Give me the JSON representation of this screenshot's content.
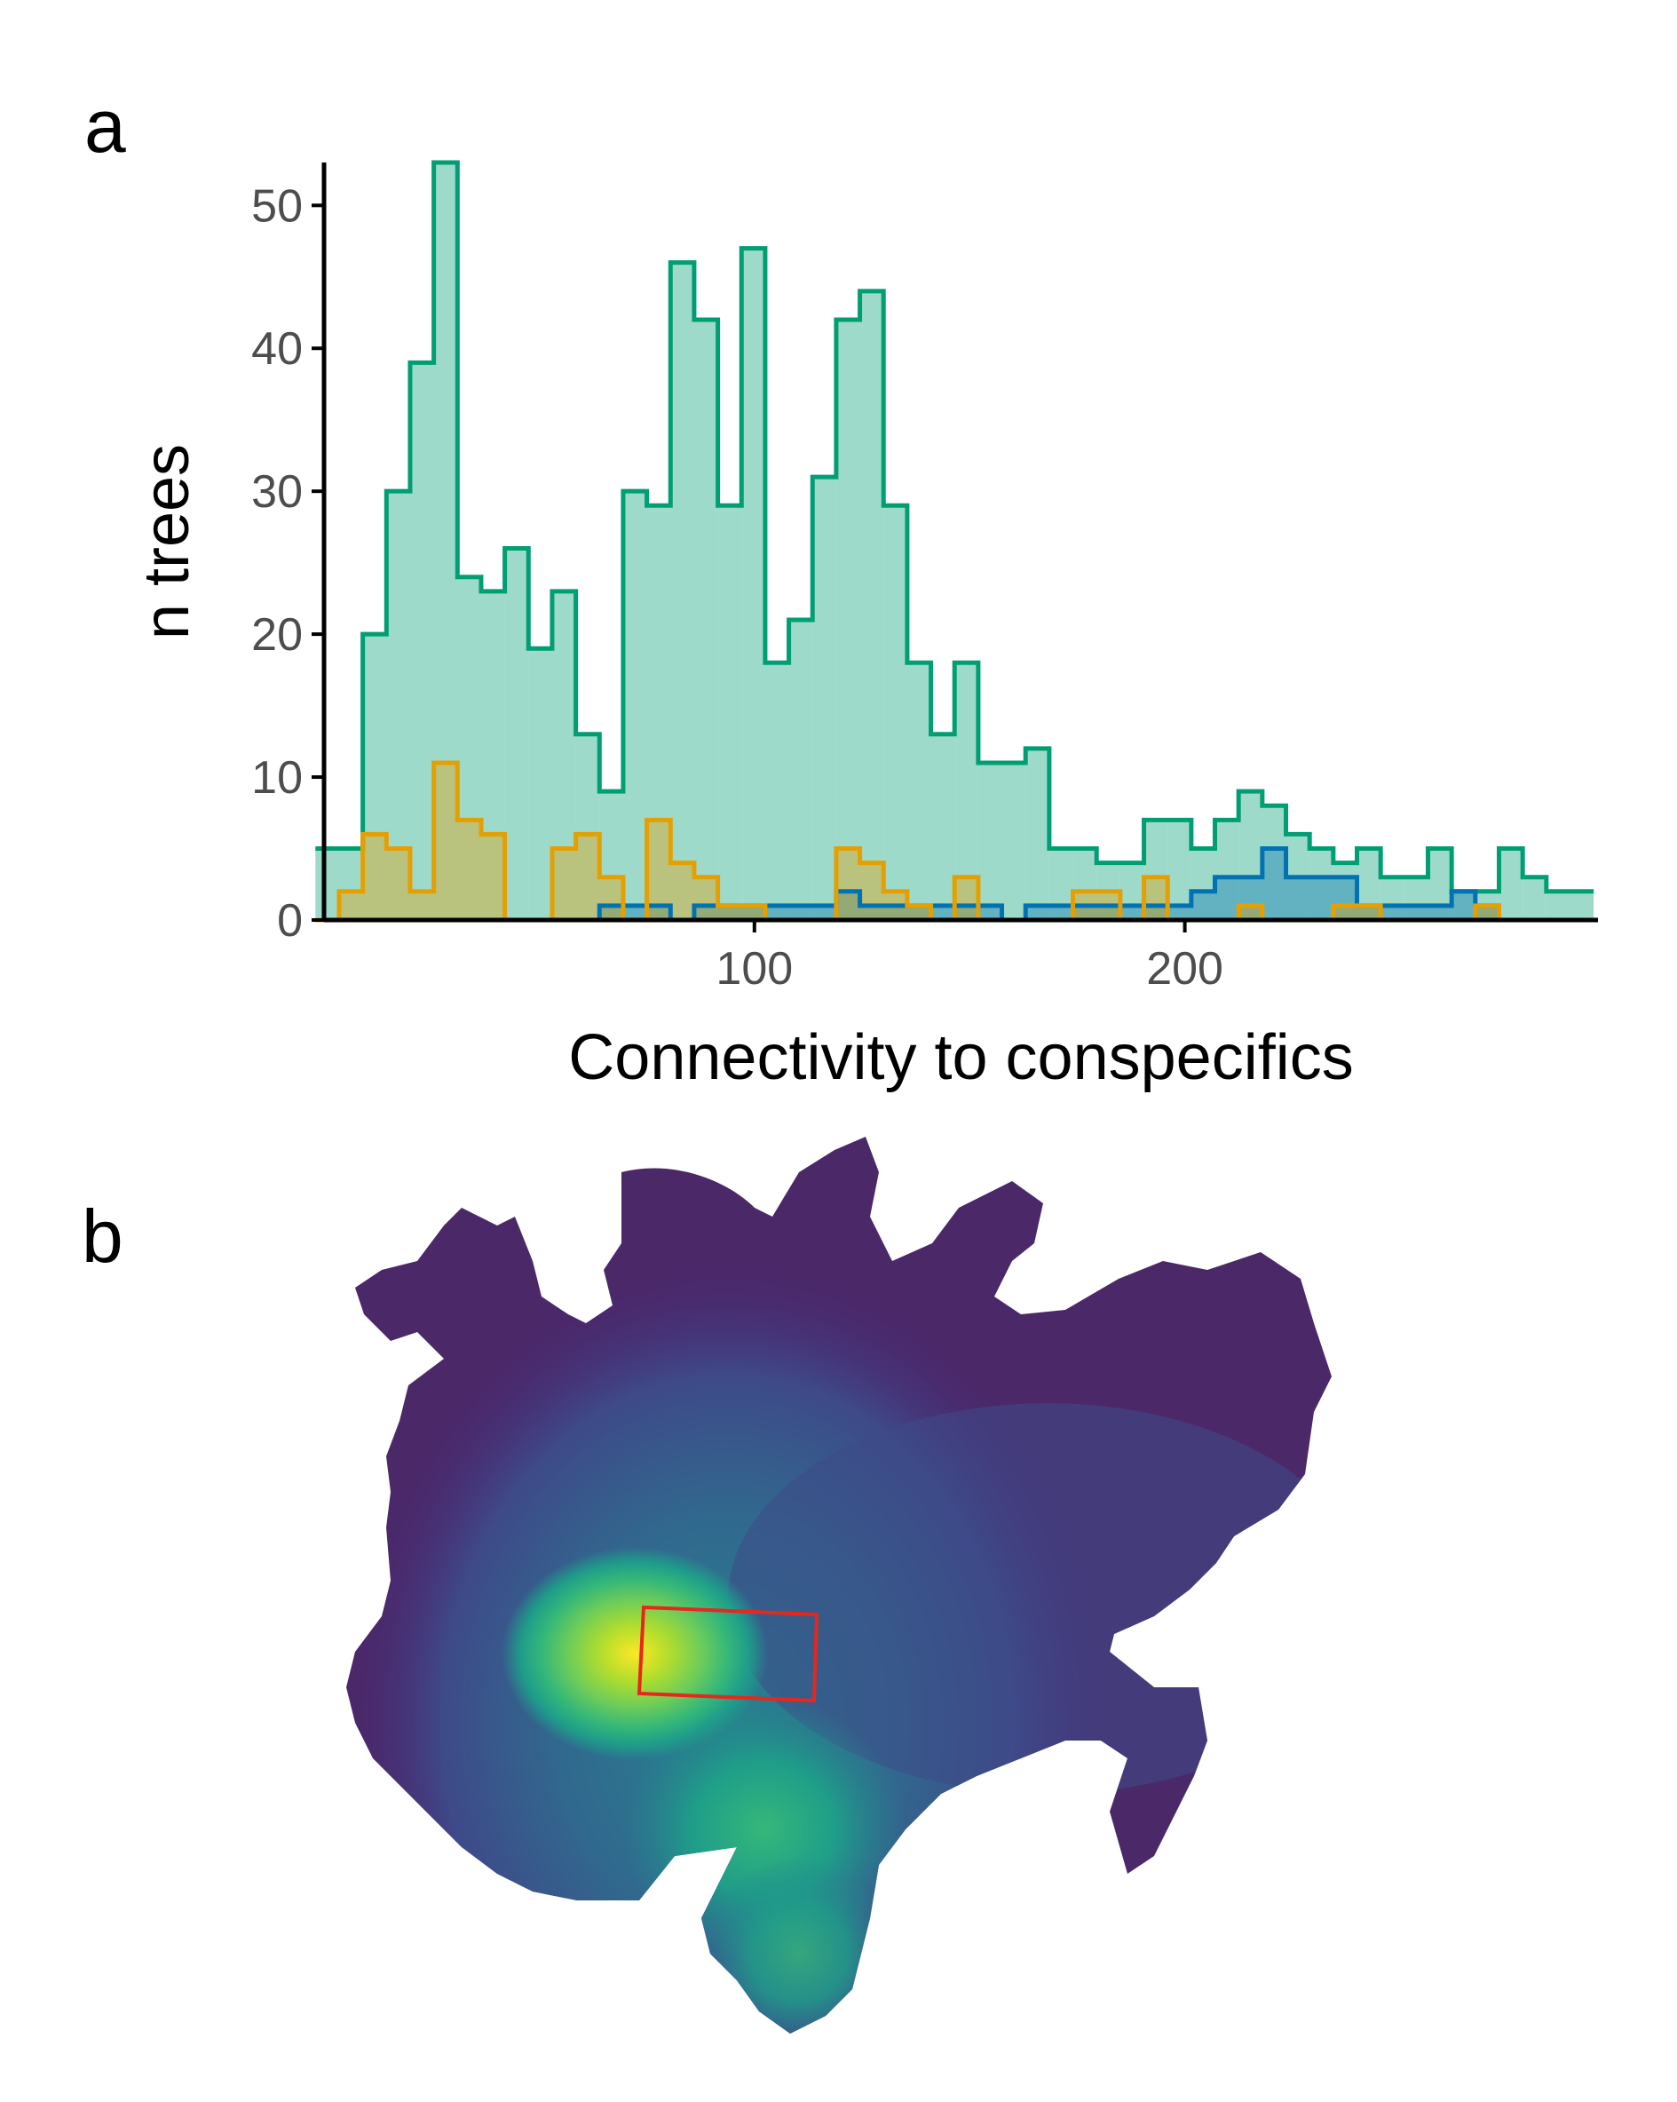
{
  "panels": {
    "a_label": "a",
    "b_label": "b"
  },
  "chart_data": [
    {
      "type": "bar",
      "subtype": "overlaid step histogram",
      "title": "",
      "xlabel": "Connectivity to conspecifics",
      "ylabel": "n trees",
      "xlim": [
        0,
        296
      ],
      "ylim": [
        0,
        53
      ],
      "xticks": [
        100,
        200
      ],
      "yticks": [
        0,
        10,
        20,
        30,
        40,
        50
      ],
      "grid": false,
      "bin_width": 5.5,
      "x": [
        -2,
        3.5,
        9,
        14.5,
        20,
        25.5,
        31,
        36.5,
        42,
        47.5,
        53,
        58.5,
        64,
        69.5,
        75,
        80.5,
        86,
        91.5,
        97,
        102.5,
        108,
        113.5,
        119,
        124.5,
        130,
        135.5,
        141,
        146.5,
        152,
        157.5,
        163,
        168.5,
        174,
        179.5,
        185,
        190.5,
        196,
        201.5,
        207,
        212.5,
        218,
        223.5,
        229,
        234.5,
        240,
        245.5,
        251,
        256.5,
        262,
        267.5,
        273,
        278.5,
        284,
        289.5
      ],
      "series": [
        {
          "color": "#009E73",
          "fill": "#009E73",
          "values": [
            5,
            5,
            20,
            30,
            39,
            53,
            24,
            23,
            26,
            19,
            23,
            13,
            9,
            30,
            29,
            46,
            42,
            29,
            47,
            18,
            21,
            31,
            42,
            44,
            29,
            18,
            13,
            18,
            11,
            11,
            12,
            5,
            5,
            4,
            4,
            7,
            7,
            5,
            7,
            9,
            8,
            6,
            5,
            4,
            5,
            3,
            3,
            5,
            2,
            2,
            5,
            3,
            2,
            2
          ]
        },
        {
          "color": "#0072B2",
          "fill": "#0072B2",
          "values": [
            0,
            0,
            0,
            0,
            0,
            0,
            0,
            0,
            0,
            0,
            0,
            0,
            1,
            1,
            1,
            0,
            1,
            1,
            1,
            1,
            1,
            1,
            2,
            1,
            1,
            1,
            1,
            1,
            1,
            0,
            1,
            1,
            1,
            1,
            1,
            1,
            1,
            2,
            3,
            3,
            5,
            3,
            3,
            3,
            1,
            1,
            1,
            1,
            2,
            1,
            0,
            0,
            0,
            0
          ]
        },
        {
          "color": "#E69F00",
          "fill": "#E69F00",
          "values": [
            0,
            2,
            6,
            5,
            2,
            11,
            7,
            6,
            0,
            0,
            5,
            6,
            3,
            0,
            7,
            4,
            3,
            1,
            1,
            0,
            0,
            0,
            5,
            4,
            2,
            1,
            0,
            3,
            0,
            0,
            0,
            0,
            2,
            2,
            0,
            3,
            0,
            0,
            0,
            1,
            0,
            0,
            0,
            1,
            1,
            0,
            0,
            0,
            0,
            1,
            0,
            0,
            0,
            0
          ]
        }
      ]
    },
    {
      "type": "heatmap",
      "subtype": "filled density contour map",
      "title": "",
      "colormap": [
        "#440154",
        "#482878",
        "#3E4A89",
        "#31688E",
        "#26828E",
        "#1F9E89",
        "#35B779",
        "#6DCD59",
        "#B4DE2C",
        "#FDE725"
      ],
      "background_color": "#4B2868",
      "highlight_box_color": "#E8261B"
    }
  ]
}
